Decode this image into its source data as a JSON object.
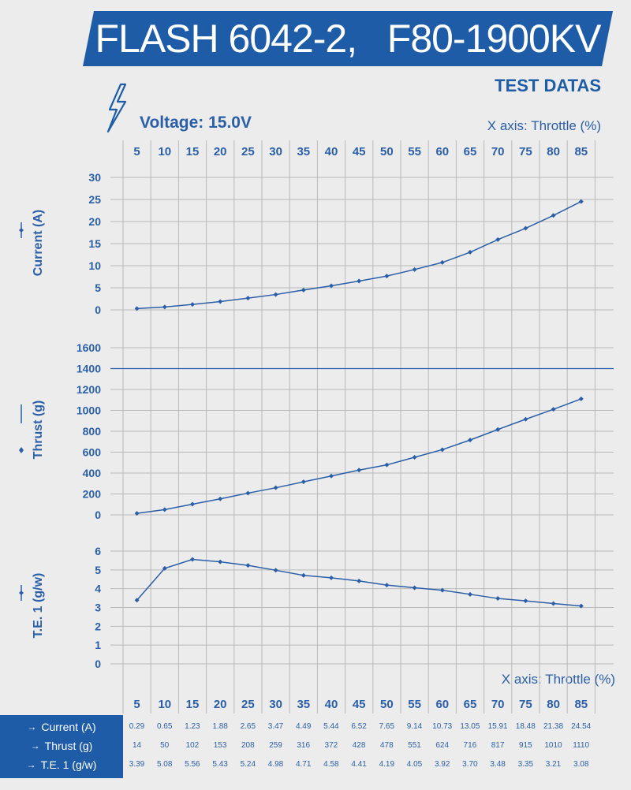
{
  "header": {
    "title": "FLASH 6042-2,   F80-1900KV",
    "subtitle": "TEST DATAS",
    "voltage": "Voltage: 15.0V",
    "x_axis_label": "X axis: Throttle (%)",
    "x_axis_label_bottom": "X axis: Throttle (%)"
  },
  "colors": {
    "brand": "#1e5ca8",
    "line": "#2a5fa8",
    "grid": "#b9b9b9",
    "background": "#ececec"
  },
  "icons": {
    "voltage": "lightning-bolt-icon"
  },
  "table": {
    "rows": [
      {
        "label": "Current (A)",
        "marker": "→",
        "values": [
          "0.29",
          "0.65",
          "1.23",
          "1.88",
          "2.65",
          "3.47",
          "4.49",
          "5.44",
          "6.52",
          "7.65",
          "9.14",
          "10.73",
          "13.05",
          "15.91",
          "18.48",
          "21.38",
          "24.54"
        ]
      },
      {
        "label": "Thrust  (g)",
        "marker": "→",
        "values": [
          "14",
          "50",
          "102",
          "153",
          "208",
          "259",
          "316",
          "372",
          "428",
          "478",
          "551",
          "624",
          "716",
          "817",
          "915",
          "1010",
          "1110"
        ]
      },
      {
        "label": "T.E. 1 (g/w)",
        "marker": "→",
        "values": [
          "3.39",
          "5.08",
          "5.56",
          "5.43",
          "5.24",
          "4.98",
          "4.71",
          "4.58",
          "4.41",
          "4.19",
          "4.05",
          "3.92",
          "3.70",
          "3.48",
          "3.35",
          "3.21",
          "3.08"
        ]
      }
    ]
  },
  "chart_data": [
    {
      "type": "line",
      "title": "Current",
      "ylabel": "Current (A)",
      "xlabel": "X axis: Throttle (%)",
      "x": [
        5,
        10,
        15,
        20,
        25,
        30,
        35,
        40,
        45,
        50,
        55,
        60,
        65,
        70,
        75,
        80,
        85
      ],
      "y": [
        0.29,
        0.65,
        1.23,
        1.88,
        2.65,
        3.47,
        4.49,
        5.44,
        6.52,
        7.65,
        9.14,
        10.73,
        13.05,
        15.91,
        18.48,
        21.38,
        24.54
      ],
      "yticks": [
        0,
        5,
        10,
        15,
        20,
        25,
        30
      ],
      "ylim": [
        -0.5,
        30
      ],
      "grid": true
    },
    {
      "type": "line",
      "title": "Thrust",
      "ylabel": "Thrust (g)",
      "xlabel": "X axis: Throttle (%)",
      "x": [
        5,
        10,
        15,
        20,
        25,
        30,
        35,
        40,
        45,
        50,
        55,
        60,
        65,
        70,
        75,
        80,
        85
      ],
      "y": [
        14,
        50,
        102,
        153,
        208,
        259,
        316,
        372,
        428,
        478,
        551,
        624,
        716,
        817,
        915,
        1010,
        1110
      ],
      "yticks": [
        0,
        200,
        400,
        600,
        800,
        1000,
        1200,
        1400,
        1600
      ],
      "ylim": [
        0,
        1600
      ],
      "grid": true
    },
    {
      "type": "line",
      "title": "T.E. 1",
      "ylabel": "T.E. 1 (g/w)",
      "xlabel": "X axis: Throttle (%)",
      "x": [
        5,
        10,
        15,
        20,
        25,
        30,
        35,
        40,
        45,
        50,
        55,
        60,
        65,
        70,
        75,
        80,
        85
      ],
      "y": [
        3.39,
        5.08,
        5.56,
        5.43,
        5.24,
        4.98,
        4.71,
        4.58,
        4.41,
        4.19,
        4.05,
        3.92,
        3.7,
        3.48,
        3.35,
        3.21,
        3.08
      ],
      "yticks": [
        0,
        1,
        2,
        3,
        4,
        5,
        6
      ],
      "ylim": [
        0,
        6
      ],
      "grid": true
    }
  ]
}
